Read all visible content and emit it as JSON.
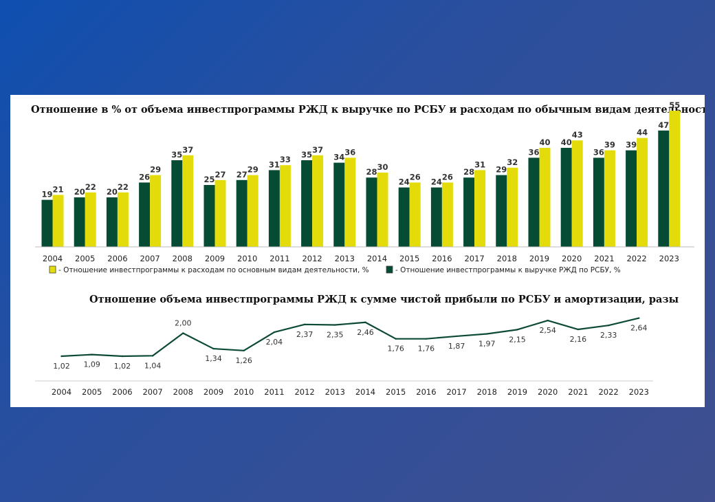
{
  "colors": {
    "dark_green": "#064b33",
    "yellow": "#e3dc0a",
    "line": "#0d4a34"
  },
  "chart_data": [
    {
      "type": "bar",
      "title": "Отношение в % от объема инвестпрограммы РЖД к выручке по РСБУ и расходам по обычным видам деятельности",
      "categories": [
        "2004",
        "2005",
        "2006",
        "2007",
        "2008",
        "2009",
        "2010",
        "2011",
        "2012",
        "2013",
        "2014",
        "2015",
        "2016",
        "2017",
        "2018",
        "2019",
        "2020",
        "2021",
        "2022",
        "2023"
      ],
      "series": [
        {
          "name": "- Отношение инвестпрограммы к выручке РЖД по РСБУ, %",
          "color": "dark_green",
          "values": [
            19,
            20,
            20,
            26,
            35,
            25,
            27,
            31,
            35,
            34,
            28,
            24,
            24,
            28,
            29,
            36,
            40,
            36,
            39,
            47
          ]
        },
        {
          "name": "- Отношение инвестпрограммы к расходам по основным видам деятельности, %",
          "color": "yellow",
          "values": [
            21,
            22,
            22,
            29,
            37,
            27,
            29,
            33,
            37,
            36,
            30,
            26,
            26,
            31,
            32,
            40,
            43,
            39,
            44,
            55
          ]
        }
      ],
      "legend_order": [
        1,
        0
      ],
      "ylim": [
        0,
        55
      ]
    },
    {
      "type": "line",
      "title": "Отношение объема инвестпрограммы РЖД к сумме чистой прибыли по РСБУ и амортизации, разы",
      "categories": [
        "2004",
        "2005",
        "2006",
        "2007",
        "2008",
        "2009",
        "2010",
        "2011",
        "2012",
        "2013",
        "2014",
        "2015",
        "2016",
        "2017",
        "2018",
        "2019",
        "2020",
        "2021",
        "2022",
        "2023"
      ],
      "values": [
        1.02,
        1.09,
        1.02,
        1.04,
        2.0,
        1.34,
        1.26,
        2.04,
        2.37,
        2.35,
        2.46,
        1.76,
        1.76,
        1.87,
        1.97,
        2.15,
        2.54,
        2.16,
        2.33,
        2.64
      ],
      "labels": [
        "1,02",
        "1,09",
        "1,02",
        "1,04",
        "2,00",
        "1,34",
        "1,26",
        "2,04",
        "2,37",
        "2,35",
        "2,46",
        "1,76",
        "1,76",
        "1,87",
        "1,97",
        "2,15",
        "2,54",
        "2,16",
        "2,33",
        "2,64"
      ],
      "label_position": [
        "below",
        "below",
        "below",
        "below",
        "above",
        "below",
        "below",
        "below",
        "below",
        "below",
        "below",
        "below",
        "below",
        "below",
        "below",
        "below",
        "below",
        "below",
        "below",
        "below"
      ],
      "ylim": [
        1.0,
        2.7
      ]
    }
  ]
}
